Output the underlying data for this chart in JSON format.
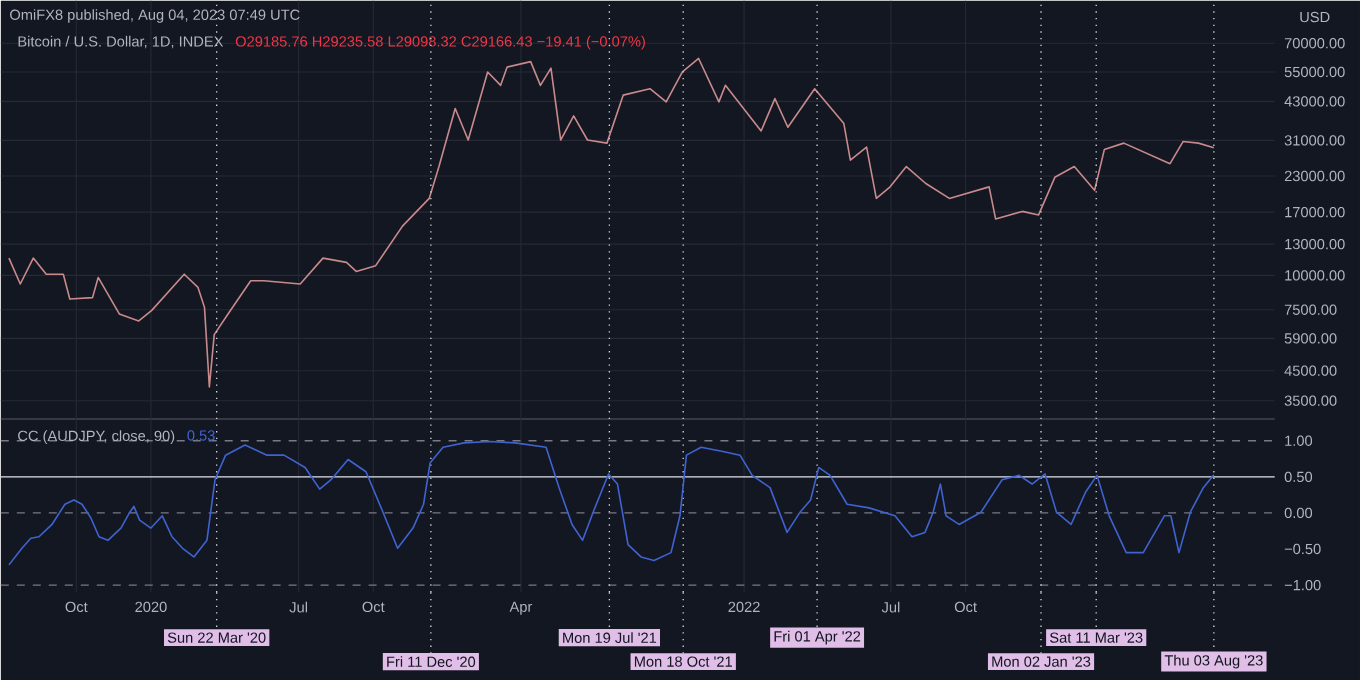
{
  "chart_data": [
    {
      "type": "line",
      "title": "OmiFX8 published, Aug 04, 2023 07:49 UTC",
      "subtitle": "Bitcoin / U.S. Dollar, 1D, INDEX",
      "annotations": [
        "O29185.76 H29235.58 L29098.32 C29166.43 −19.41 (−0.07%)"
      ],
      "ylabel": "USD",
      "x": [
        "2019-07-10",
        "2019-07-24",
        "2019-08-09",
        "2019-08-25",
        "2019-09-15",
        "2019-09-23",
        "2019-10-21",
        "2019-10-28",
        "2019-11-23",
        "2019-12-17",
        "2020-01-02",
        "2020-02-11",
        "2020-02-28",
        "2020-03-07",
        "2020-03-13",
        "2020-03-19",
        "2020-04-05",
        "2020-05-03",
        "2020-05-19",
        "2020-07-03",
        "2020-07-31",
        "2020-08-29",
        "2020-09-10",
        "2020-10-04",
        "2020-11-06",
        "2020-12-09",
        "2020-12-21",
        "2021-01-10",
        "2021-01-26",
        "2021-02-19",
        "2021-03-07",
        "2021-03-15",
        "2021-04-13",
        "2021-04-25",
        "2021-05-08",
        "2021-05-20",
        "2021-06-05",
        "2021-06-22",
        "2021-07-16",
        "2021-08-05",
        "2021-09-07",
        "2021-09-27",
        "2021-10-17",
        "2021-11-06",
        "2021-12-01",
        "2021-12-09",
        "2022-01-22",
        "2022-02-08",
        "2022-02-24",
        "2022-03-29",
        "2022-05-04",
        "2022-05-12",
        "2022-06-01",
        "2022-06-13",
        "2022-06-30",
        "2022-07-20",
        "2022-08-13",
        "2022-09-11",
        "2022-10-30",
        "2022-11-07",
        "2022-12-10",
        "2022-12-30",
        "2023-01-19",
        "2023-02-12",
        "2023-03-09",
        "2023-03-21",
        "2023-04-14",
        "2023-06-10",
        "2023-06-26",
        "2023-07-15",
        "2023-08-03"
      ],
      "series": [
        {
          "color": "#c98a8c",
          "values": [
            11560,
            9306,
            11560,
            10100,
            10100,
            8200,
            8300,
            9830,
            7240,
            6830,
            7460,
            10100,
            9040,
            7650,
            3930,
            6090,
            7240,
            9560,
            9560,
            9306,
            11560,
            11150,
            10340,
            10850,
            15120,
            19070,
            24900,
            40480,
            31100,
            55000,
            49170,
            57300,
            60000,
            49170,
            56800,
            31100,
            38080,
            31100,
            30300,
            45300,
            47800,
            42800,
            55000,
            61600,
            42800,
            49170,
            33550,
            44000,
            34600,
            47800,
            35700,
            26260,
            29300,
            19070,
            21000,
            24900,
            21600,
            19070,
            21000,
            16050,
            17100,
            16600,
            22750,
            24900,
            20400,
            28700,
            30300,
            25500,
            30700,
            30300,
            29170
          ]
        }
      ],
      "xlim": [
        "2019-06-30",
        "2023-10-17"
      ],
      "xticks": [
        {
          "value": "2019-10-01",
          "label": null
        },
        {
          "value": "2020-01-01",
          "label": null
        },
        {
          "value": "2020-07-01",
          "label": null
        },
        {
          "value": "2020-10-01",
          "label": null
        },
        {
          "value": "2021-04-01",
          "label": null
        },
        {
          "value": "2022-01-01",
          "label": null
        },
        {
          "value": "2022-07-01",
          "label": null
        },
        {
          "value": "2022-10-01",
          "label": null
        }
      ],
      "ylim": [
        3000,
        100000
      ],
      "log": true,
      "yticks": [
        {
          "value": 3500,
          "label": "3500.00"
        },
        {
          "value": 4500,
          "label": "4500.00"
        },
        {
          "value": 5900,
          "label": "5900.00"
        },
        {
          "value": 7500,
          "label": "7500.00"
        },
        {
          "value": 10000,
          "label": "10000.00"
        },
        {
          "value": 13000,
          "label": "13000.00"
        },
        {
          "value": 17000,
          "label": "17000.00"
        },
        {
          "value": 23000,
          "label": "23000.00"
        },
        {
          "value": 31000,
          "label": "31000.00"
        },
        {
          "value": 43000,
          "label": "43000.00"
        },
        {
          "value": 55000,
          "label": "55000.00"
        },
        {
          "value": 70000,
          "label": "70000.00"
        }
      ],
      "grid": true,
      "tick_labels": "y"
    },
    {
      "type": "line",
      "title": "CC (AUDJPY, close, 90)",
      "annotations": [
        "0.53"
      ],
      "x": [
        "2019-07-10",
        "2019-07-26",
        "2019-08-06",
        "2019-08-16",
        "2019-09-01",
        "2019-09-17",
        "2019-09-28",
        "2019-10-08",
        "2019-10-19",
        "2019-10-29",
        "2019-11-09",
        "2019-11-25",
        "2019-12-06",
        "2019-12-11",
        "2019-12-18",
        "2020-01-01",
        "2020-01-15",
        "2020-01-27",
        "2020-02-09",
        "2020-02-23",
        "2020-03-10",
        "2020-03-20",
        "2020-04-02",
        "2020-04-26",
        "2020-05-23",
        "2020-06-13",
        "2020-07-09",
        "2020-07-27",
        "2020-08-10",
        "2020-08-31",
        "2020-09-22",
        "2020-10-13",
        "2020-10-31",
        "2020-11-19",
        "2020-12-02",
        "2020-12-10",
        "2020-12-26",
        "2021-01-21",
        "2021-02-22",
        "2021-03-25",
        "2021-05-02",
        "2021-05-18",
        "2021-06-03",
        "2021-06-16",
        "2021-06-29",
        "2021-07-18",
        "2021-07-29",
        "2021-08-11",
        "2021-08-27",
        "2021-09-12",
        "2021-10-03",
        "2021-10-14",
        "2021-10-22",
        "2021-11-09",
        "2021-12-06",
        "2021-12-27",
        "2022-01-11",
        "2022-02-02",
        "2022-02-23",
        "2022-03-11",
        "2022-03-24",
        "2022-04-03",
        "2022-04-17",
        "2022-05-08",
        "2022-06-04",
        "2022-07-06",
        "2022-07-27",
        "2022-08-12",
        "2022-08-22",
        "2022-08-31",
        "2022-09-07",
        "2022-09-23",
        "2022-10-20",
        "2022-11-15",
        "2022-12-06",
        "2022-12-22",
        "2023-01-07",
        "2023-01-21",
        "2023-02-08",
        "2023-02-26",
        "2023-03-12",
        "2023-03-27",
        "2023-04-17",
        "2023-05-08",
        "2023-06-03",
        "2023-06-11",
        "2023-06-21",
        "2023-07-05",
        "2023-07-21",
        "2023-08-03"
      ],
      "series": [
        {
          "color": "#3f63d1",
          "values": [
            -0.72,
            -0.49,
            -0.35,
            -0.33,
            -0.16,
            0.12,
            0.18,
            0.12,
            -0.07,
            -0.33,
            -0.38,
            -0.21,
            0.01,
            0.09,
            -0.1,
            -0.21,
            -0.04,
            -0.33,
            -0.49,
            -0.61,
            -0.38,
            0.46,
            0.8,
            0.94,
            0.8,
            0.8,
            0.63,
            0.33,
            0.46,
            0.74,
            0.57,
            0.01,
            -0.49,
            -0.21,
            0.12,
            0.69,
            0.91,
            0.97,
            0.99,
            0.97,
            0.91,
            0.35,
            -0.16,
            -0.38,
            0.01,
            0.54,
            0.4,
            -0.44,
            -0.61,
            -0.66,
            -0.55,
            -0.04,
            0.8,
            0.91,
            0.85,
            0.8,
            0.52,
            0.35,
            -0.27,
            0.01,
            0.18,
            0.63,
            0.52,
            0.12,
            0.07,
            -0.04,
            -0.33,
            -0.27,
            0.01,
            0.4,
            -0.04,
            -0.16,
            0.01,
            0.46,
            0.52,
            0.4,
            0.54,
            0.01,
            -0.16,
            0.29,
            0.52,
            -0.04,
            -0.55,
            -0.55,
            -0.04,
            -0.04,
            -0.55,
            0.01,
            0.35,
            0.53
          ]
        }
      ],
      "xlim": [
        "2019-06-30",
        "2023-10-17"
      ],
      "xticks": [
        {
          "value": "2019-10-01",
          "label": "Oct"
        },
        {
          "value": "2020-01-01",
          "label": "2020"
        },
        {
          "value": "2020-07-01",
          "label": "Jul"
        },
        {
          "value": "2020-10-01",
          "label": "Oct"
        },
        {
          "value": "2021-04-01",
          "label": "Apr"
        },
        {
          "value": "2022-01-01",
          "label": "2022"
        },
        {
          "value": "2022-07-01",
          "label": "Jul"
        },
        {
          "value": "2022-10-01",
          "label": "Oct"
        }
      ],
      "ylim": [
        -1.1,
        1.3
      ],
      "yticks": [
        {
          "value": -1,
          "label": "−1.00"
        },
        {
          "value": -0.5,
          "label": "−0.50"
        },
        {
          "value": 0,
          "label": "0.00"
        },
        {
          "value": 0.5,
          "label": "0.50"
        },
        {
          "value": 1,
          "label": "1.00"
        }
      ],
      "grid": "x",
      "ref_lines": [
        {
          "axis": "y",
          "value": 1,
          "color": "#787b86",
          "line_style": "dashed"
        },
        {
          "axis": "y",
          "value": 0,
          "color": "#787b86",
          "line_style": "dashed"
        },
        {
          "axis": "y",
          "value": -1,
          "color": "#787b86",
          "line_style": "dashed"
        },
        {
          "axis": "y",
          "value": 0.5,
          "color": "#e0e3eb",
          "line_style": "solid"
        },
        {
          "axis": "x",
          "value": "2020-03-22",
          "label": "Sun 22 Mar '20",
          "color": "#d1d4dc",
          "line_style": "dotted"
        },
        {
          "axis": "x",
          "value": "2020-12-11",
          "label": "Fri 11 Dec '20",
          "color": "#d1d4dc",
          "line_style": "dotted"
        },
        {
          "axis": "x",
          "value": "2021-07-19",
          "label": "Mon 19 Jul '21",
          "color": "#d1d4dc",
          "line_style": "dotted"
        },
        {
          "axis": "x",
          "value": "2021-10-18",
          "label": "Mon 18 Oct '21",
          "color": "#d1d4dc",
          "line_style": "dotted"
        },
        {
          "axis": "x",
          "value": "2022-04-01",
          "label": "Fri 01 Apr '22",
          "color": "#d1d4dc",
          "line_style": "dotted"
        },
        {
          "axis": "x",
          "value": "2023-01-02",
          "label": "Mon 02 Jan '23",
          "color": "#d1d4dc",
          "line_style": "dotted"
        },
        {
          "axis": "x",
          "value": "2023-03-11",
          "label": "Sat 11 Mar '23",
          "color": "#d1d4dc",
          "line_style": "dotted"
        },
        {
          "axis": "x",
          "value": "2023-08-03",
          "label": "Thu 03 Aug '23",
          "color": "#d1d4dc",
          "line_style": "dotted"
        }
      ]
    }
  ]
}
